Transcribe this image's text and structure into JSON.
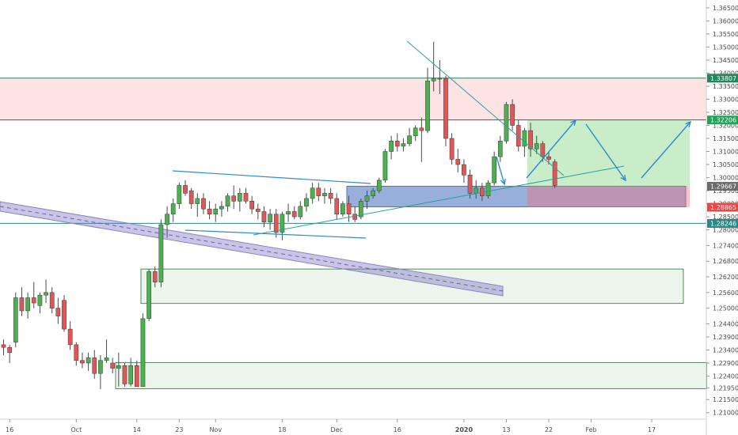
{
  "chart_data": {
    "type": "candlestick",
    "instrument_hint": "daily price chart",
    "ylim": [
      1.2075,
      1.368
    ],
    "y_ticks": [
      "1.21000",
      "1.21500",
      "1.21950",
      "1.22400",
      "1.22900",
      "1.23400",
      "1.23900",
      "1.24400",
      "1.25000",
      "1.25600",
      "1.26200",
      "1.26800",
      "1.27400",
      "1.28000",
      "1.28500",
      "1.29000",
      "1.29500",
      "1.30000",
      "1.30500",
      "1.31000",
      "1.31500",
      "1.32000",
      "1.32500",
      "1.33000",
      "1.33500",
      "1.34000",
      "1.34500",
      "1.35000",
      "1.35500",
      "1.36000",
      "1.36500"
    ],
    "x_ticks": [
      {
        "label": "16",
        "bar": 1
      },
      {
        "label": "Oct",
        "bar": 12
      },
      {
        "label": "14",
        "bar": 22
      },
      {
        "label": "23",
        "bar": 29
      },
      {
        "label": "Nov",
        "bar": 35
      },
      {
        "label": "18",
        "bar": 46
      },
      {
        "label": "Dec",
        "bar": 55
      },
      {
        "label": "16",
        "bar": 65
      },
      {
        "label": "2020",
        "bar": 76,
        "bold": true
      },
      {
        "label": "13",
        "bar": 83
      },
      {
        "label": "22",
        "bar": 90
      },
      {
        "label": "Feb",
        "bar": 97
      },
      {
        "label": "17",
        "bar": 107
      }
    ],
    "price_tags": [
      {
        "value": 1.33807,
        "label": "1.33807",
        "color": "#22885c"
      },
      {
        "value": 1.32206,
        "label": "1.32206",
        "color": "#22a35a"
      },
      {
        "value": 1.29667,
        "label": "1.29667",
        "color": "#6b6b6b"
      },
      {
        "value": 1.28865,
        "label": "1.28865",
        "color": "#ef4444"
      },
      {
        "value": 1.28246,
        "label": "1.28246",
        "color": "#2a8a8a"
      }
    ],
    "candles": [
      [
        1.236,
        1.238,
        1.232,
        1.235
      ],
      [
        1.235,
        1.236,
        1.229,
        1.233
      ],
      [
        1.237,
        1.256,
        1.235,
        1.254
      ],
      [
        1.254,
        1.258,
        1.247,
        1.249
      ],
      [
        1.249,
        1.256,
        1.246,
        1.254
      ],
      [
        1.254,
        1.26,
        1.25,
        1.252
      ],
      [
        1.251,
        1.256,
        1.248,
        1.255
      ],
      [
        1.255,
        1.261,
        1.252,
        1.256
      ],
      [
        1.256,
        1.258,
        1.248,
        1.25
      ],
      [
        1.25,
        1.254,
        1.244,
        1.247
      ],
      [
        1.253,
        1.255,
        1.241,
        1.242
      ],
      [
        1.242,
        1.245,
        1.234,
        1.236
      ],
      [
        1.236,
        1.237,
        1.228,
        1.23
      ],
      [
        1.23,
        1.233,
        1.227,
        1.229
      ],
      [
        1.229,
        1.233,
        1.226,
        1.231
      ],
      [
        1.231,
        1.234,
        1.223,
        1.225
      ],
      [
        1.225,
        1.232,
        1.219,
        1.23
      ],
      [
        1.23,
        1.238,
        1.229,
        1.231
      ],
      [
        1.229,
        1.231,
        1.225,
        1.227
      ],
      [
        1.227,
        1.233,
        1.22,
        1.228
      ],
      [
        1.228,
        1.229,
        1.22,
        1.221
      ],
      [
        1.221,
        1.231,
        1.22,
        1.228
      ],
      [
        1.228,
        1.23,
        1.22,
        1.22
      ],
      [
        1.22,
        1.248,
        1.22,
        1.246
      ],
      [
        1.246,
        1.265,
        1.245,
        1.264
      ],
      [
        1.264,
        1.266,
        1.258,
        1.26
      ],
      [
        1.26,
        1.284,
        1.258,
        1.282
      ],
      [
        1.282,
        1.289,
        1.277,
        1.286
      ],
      [
        1.286,
        1.292,
        1.283,
        1.29
      ],
      [
        1.29,
        1.298,
        1.288,
        1.297
      ],
      [
        1.297,
        1.299,
        1.293,
        1.294
      ],
      [
        1.295,
        1.296,
        1.288,
        1.29
      ],
      [
        1.29,
        1.294,
        1.285,
        1.292
      ],
      [
        1.292,
        1.294,
        1.286,
        1.288
      ],
      [
        1.288,
        1.291,
        1.284,
        1.286
      ],
      [
        1.286,
        1.29,
        1.283,
        1.288
      ],
      [
        1.288,
        1.291,
        1.285,
        1.289
      ],
      [
        1.289,
        1.294,
        1.287,
        1.293
      ],
      [
        1.293,
        1.297,
        1.288,
        1.291
      ],
      [
        1.291,
        1.296,
        1.287,
        1.294
      ],
      [
        1.294,
        1.296,
        1.29,
        1.291
      ],
      [
        1.291,
        1.293,
        1.286,
        1.288
      ],
      [
        1.288,
        1.29,
        1.284,
        1.287
      ],
      [
        1.287,
        1.289,
        1.281,
        1.283
      ],
      [
        1.283,
        1.288,
        1.28,
        1.286
      ],
      [
        1.286,
        1.288,
        1.277,
        1.279
      ],
      [
        1.279,
        1.287,
        1.276,
        1.286
      ],
      [
        1.286,
        1.29,
        1.283,
        1.287
      ],
      [
        1.287,
        1.289,
        1.284,
        1.285
      ],
      [
        1.285,
        1.291,
        1.284,
        1.289
      ],
      [
        1.289,
        1.294,
        1.287,
        1.292
      ],
      [
        1.292,
        1.298,
        1.29,
        1.296
      ],
      [
        1.296,
        1.298,
        1.291,
        1.293
      ],
      [
        1.293,
        1.296,
        1.29,
        1.294
      ],
      [
        1.294,
        1.296,
        1.29,
        1.292
      ],
      [
        1.292,
        1.294,
        1.284,
        1.286
      ],
      [
        1.286,
        1.291,
        1.285,
        1.29
      ],
      [
        1.29,
        1.293,
        1.283,
        1.286
      ],
      [
        1.286,
        1.289,
        1.283,
        1.284
      ],
      [
        1.285,
        1.292,
        1.284,
        1.291
      ],
      [
        1.291,
        1.295,
        1.288,
        1.293
      ],
      [
        1.293,
        1.296,
        1.292,
        1.295
      ],
      [
        1.295,
        1.3,
        1.294,
        1.299
      ],
      [
        1.299,
        1.311,
        1.298,
        1.31
      ],
      [
        1.31,
        1.316,
        1.307,
        1.314
      ],
      [
        1.314,
        1.317,
        1.31,
        1.312
      ],
      [
        1.312,
        1.315,
        1.31,
        1.313
      ],
      [
        1.313,
        1.319,
        1.312,
        1.316
      ],
      [
        1.316,
        1.32,
        1.314,
        1.319
      ],
      [
        1.319,
        1.323,
        1.306,
        1.318
      ],
      [
        1.318,
        1.342,
        1.317,
        1.337
      ],
      [
        1.337,
        1.352,
        1.333,
        1.338
      ],
      [
        1.338,
        1.345,
        1.332,
        1.338
      ],
      [
        1.338,
        1.339,
        1.312,
        1.315
      ],
      [
        1.315,
        1.317,
        1.305,
        1.307
      ],
      [
        1.307,
        1.311,
        1.302,
        1.305
      ],
      [
        1.305,
        1.307,
        1.298,
        1.301
      ],
      [
        1.301,
        1.303,
        1.292,
        1.294
      ],
      [
        1.294,
        1.299,
        1.292,
        1.296
      ],
      [
        1.296,
        1.298,
        1.291,
        1.293
      ],
      [
        1.293,
        1.299,
        1.292,
        1.298
      ],
      [
        1.298,
        1.31,
        1.297,
        1.308
      ],
      [
        1.308,
        1.316,
        1.306,
        1.314
      ],
      [
        1.314,
        1.329,
        1.313,
        1.328
      ],
      [
        1.328,
        1.33,
        1.318,
        1.32
      ],
      [
        1.32,
        1.322,
        1.31,
        1.312
      ],
      [
        1.312,
        1.319,
        1.308,
        1.318
      ],
      [
        1.318,
        1.321,
        1.308,
        1.311
      ],
      [
        1.311,
        1.316,
        1.309,
        1.313
      ],
      [
        1.313,
        1.314,
        1.306,
        1.308
      ],
      [
        1.308,
        1.31,
        1.305,
        1.307
      ],
      [
        1.306,
        1.307,
        1.296,
        1.297
      ]
    ],
    "drawings": {
      "upper_resistance_zone": [
        1.3221,
        1.3381
      ],
      "mid_support_zone": [
        1.2888,
        1.2967
      ],
      "buy_target_zone": [
        1.2967,
        1.3221
      ],
      "buy_stop_zone": [
        1.2887,
        1.2967
      ],
      "lower_zone_1": [
        1.2518,
        1.265
      ],
      "lower_zone_2": [
        1.2192,
        1.2292
      ],
      "horizontal_1": 1.3381,
      "horizontal_2": 1.3221,
      "horizontal_3": 1.2825
    }
  }
}
